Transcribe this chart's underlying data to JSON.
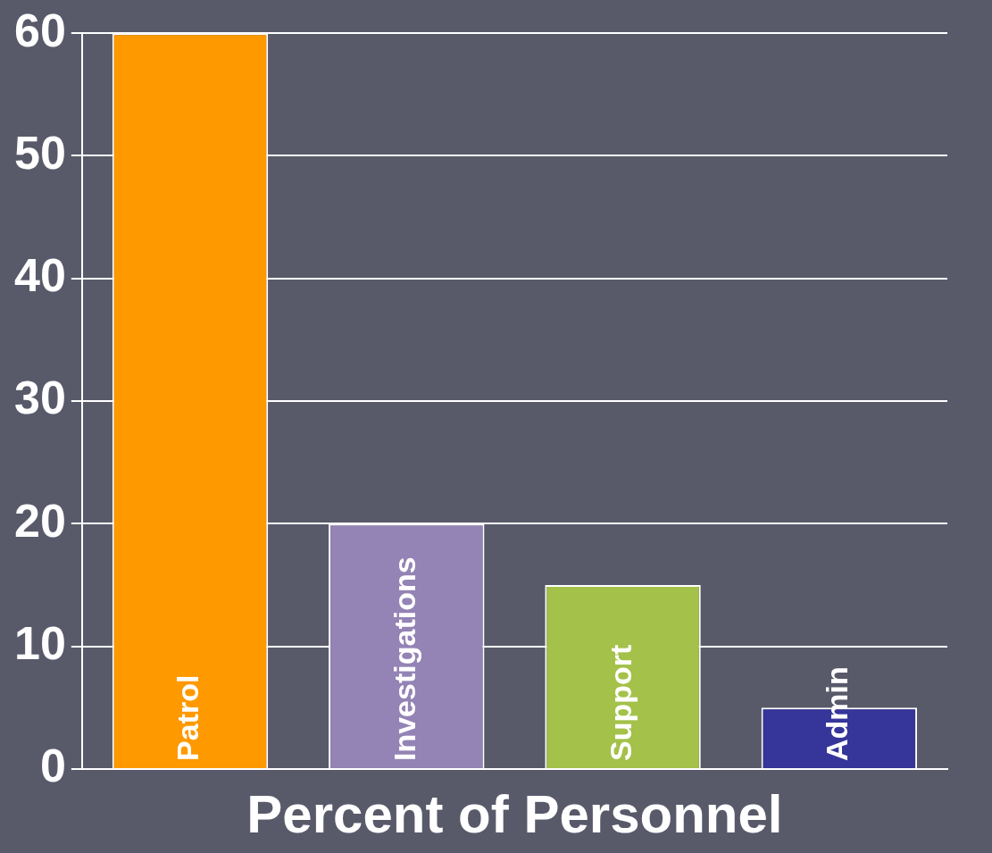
{
  "chart_data": {
    "type": "bar",
    "xlabel": "Percent of Personnel",
    "categories": [
      "Patrol",
      "Investigations",
      "Support",
      "Admin"
    ],
    "values": [
      60,
      20,
      15,
      5
    ],
    "colors": [
      "#ff9900",
      "#9483b5",
      "#a4c14a",
      "#35359a"
    ],
    "ylim": [
      0,
      60
    ],
    "yticks": [
      0,
      10,
      20,
      30,
      40,
      50,
      60
    ],
    "grid": "y",
    "legend": false
  }
}
